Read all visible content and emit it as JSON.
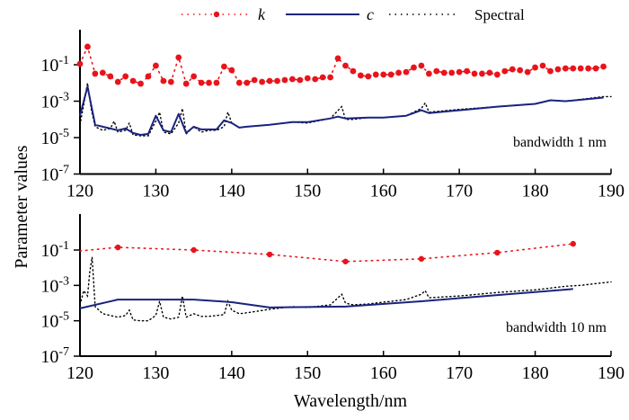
{
  "chart_data": [
    {
      "type": "line",
      "panel": "top",
      "annotation": "bandwidth 1 nm",
      "xlabel": "Wavelength/nm",
      "ylabel": "Parameter values",
      "xlim": [
        120,
        190
      ],
      "ylim_log10": [
        -7,
        1
      ],
      "yscale": "log",
      "xticks": [
        120,
        130,
        140,
        150,
        160,
        170,
        180,
        190
      ],
      "yticks": [
        {
          "base": "10",
          "exp": "-1",
          "log10": -1
        },
        {
          "base": "10",
          "exp": "-3",
          "log10": -3
        },
        {
          "base": "10",
          "exp": "-5",
          "log10": -5
        },
        {
          "base": "10",
          "exp": "-7",
          "log10": -7
        }
      ],
      "series": [
        {
          "name": "k",
          "style": "dotted-markers",
          "color": "#e8141b",
          "x": [
            120,
            121,
            122,
            123,
            124,
            125,
            126,
            127,
            128,
            129,
            130,
            131,
            132,
            133,
            134,
            135,
            136,
            137,
            138,
            139,
            140,
            141,
            142,
            143,
            144,
            145,
            146,
            147,
            148,
            149,
            150,
            151,
            152,
            153,
            154,
            155,
            156,
            157,
            158,
            159,
            160,
            161,
            162,
            163,
            164,
            165,
            166,
            167,
            168,
            169,
            170,
            171,
            172,
            173,
            174,
            175,
            176,
            177,
            178,
            179,
            180,
            181,
            182,
            183,
            184,
            185,
            186,
            187,
            188,
            189
          ],
          "log10_values": [
            -0.95,
            -0.01,
            -1.49,
            -1.44,
            -1.64,
            -1.94,
            -1.64,
            -1.89,
            -2.04,
            -1.64,
            -1.05,
            -1.89,
            -1.94,
            -0.6,
            -2.04,
            -1.64,
            -1.99,
            -1.99,
            -1.99,
            -1.1,
            -1.3,
            -1.99,
            -1.99,
            -1.84,
            -1.94,
            -1.89,
            -1.89,
            -1.84,
            -1.79,
            -1.84,
            -1.74,
            -1.79,
            -1.69,
            -1.69,
            -0.65,
            -1.05,
            -1.35,
            -1.59,
            -1.64,
            -1.54,
            -1.54,
            -1.54,
            -1.44,
            -1.4,
            -1.15,
            -1.05,
            -1.49,
            -1.35,
            -1.44,
            -1.44,
            -1.4,
            -1.35,
            -1.49,
            -1.49,
            -1.44,
            -1.54,
            -1.35,
            -1.25,
            -1.3,
            -1.4,
            -1.15,
            -1.05,
            -1.35,
            -1.25,
            -1.2,
            -1.2,
            -1.2,
            -1.2,
            -1.2,
            -1.1
          ]
        },
        {
          "name": "c",
          "style": "solid",
          "color": "#1a237e",
          "x": [
            120,
            121,
            122,
            123,
            124,
            125,
            126,
            127,
            128,
            129,
            130,
            131,
            132,
            133,
            134,
            135,
            136,
            137,
            138,
            139,
            140,
            141,
            142,
            145,
            148,
            150,
            153,
            154,
            155,
            158,
            160,
            163,
            165,
            166,
            170,
            175,
            180,
            182,
            184,
            189
          ],
          "log10_values": [
            -3.8,
            -2.2,
            -4.3,
            -4.4,
            -4.5,
            -4.6,
            -4.5,
            -4.75,
            -4.85,
            -4.8,
            -3.8,
            -4.6,
            -4.7,
            -3.7,
            -4.75,
            -4.4,
            -4.55,
            -4.55,
            -4.55,
            -4.05,
            -4.2,
            -4.45,
            -4.4,
            -4.3,
            -4.15,
            -4.15,
            -3.95,
            -3.85,
            -3.95,
            -3.9,
            -3.9,
            -3.8,
            -3.5,
            -3.65,
            -3.5,
            -3.3,
            -3.15,
            -2.95,
            -3.0,
            -2.8
          ]
        },
        {
          "name": "Spectral",
          "style": "dotted",
          "color": "#000000",
          "x": [
            120,
            120.5,
            121,
            121.5,
            122,
            123,
            124,
            124.5,
            125,
            126,
            126.5,
            127,
            128,
            129,
            130,
            130.5,
            131,
            132,
            133,
            133.5,
            134,
            135,
            136,
            137,
            138,
            139,
            139.5,
            140,
            141,
            142,
            145,
            148,
            150,
            153,
            154.5,
            155,
            156,
            158,
            160,
            163,
            165,
            165.5,
            166,
            170,
            175,
            180,
            182,
            184,
            189,
            190
          ],
          "log10_values": [
            -4.3,
            -3.2,
            -2.0,
            -3.5,
            -4.4,
            -4.6,
            -4.5,
            -4.1,
            -4.7,
            -4.6,
            -4.2,
            -4.85,
            -4.9,
            -4.9,
            -4.1,
            -3.6,
            -4.7,
            -4.8,
            -4.2,
            -3.4,
            -4.8,
            -4.4,
            -4.7,
            -4.6,
            -4.6,
            -4.4,
            -3.6,
            -4.2,
            -4.45,
            -4.4,
            -4.3,
            -4.15,
            -4.2,
            -3.95,
            -3.3,
            -4.0,
            -4.0,
            -3.9,
            -3.9,
            -3.8,
            -3.4,
            -3.1,
            -3.6,
            -3.45,
            -3.3,
            -3.15,
            -2.95,
            -3.0,
            -2.75,
            -2.75
          ]
        }
      ]
    },
    {
      "type": "line",
      "panel": "bottom",
      "annotation": "bandwidth 10 nm",
      "xlabel": "Wavelength/nm",
      "ylabel": "Parameter values",
      "xlim": [
        120,
        190
      ],
      "ylim_log10": [
        -7,
        1
      ],
      "yscale": "log",
      "xticks": [
        120,
        130,
        140,
        150,
        160,
        170,
        180,
        190
      ],
      "yticks": [
        {
          "base": "10",
          "exp": "-1",
          "log10": -1
        },
        {
          "base": "10",
          "exp": "-3",
          "log10": -3
        },
        {
          "base": "10",
          "exp": "-5",
          "log10": -5
        },
        {
          "base": "10",
          "exp": "-7",
          "log10": -7
        }
      ],
      "series": [
        {
          "name": "k",
          "style": "dotted-markers",
          "color": "#e8141b",
          "x": [
            120,
            125,
            135,
            145,
            155,
            165,
            175,
            185
          ],
          "marker_at": [
            125,
            135,
            145,
            155,
            165,
            175,
            185
          ],
          "log10_values": [
            -1.05,
            -0.85,
            -1.0,
            -1.25,
            -1.65,
            -1.5,
            -1.15,
            -0.65
          ]
        },
        {
          "name": "c",
          "style": "solid",
          "color": "#1a237e",
          "x": [
            120,
            125,
            135,
            140,
            145,
            155,
            165,
            175,
            185
          ],
          "log10_values": [
            -4.3,
            -3.8,
            -3.8,
            -3.95,
            -4.25,
            -4.2,
            -3.9,
            -3.55,
            -3.2
          ]
        },
        {
          "name": "Spectral",
          "style": "dotted",
          "color": "#000000",
          "x": [
            120,
            120.5,
            121,
            121.3,
            121.6,
            122,
            123,
            124,
            125,
            126,
            126.5,
            127,
            128,
            129,
            130,
            130.5,
            131,
            132,
            133,
            133.5,
            134,
            135,
            136,
            137,
            138,
            139,
            139.5,
            140,
            141,
            142,
            145,
            148,
            150,
            153,
            154.5,
            155,
            156,
            158,
            160,
            163,
            165,
            165.5,
            166,
            170,
            175,
            180,
            182,
            184,
            186,
            190
          ],
          "log10_values": [
            -4.1,
            -3.3,
            -3.6,
            -2.2,
            -1.4,
            -4.2,
            -4.6,
            -4.7,
            -4.8,
            -4.7,
            -4.4,
            -4.95,
            -5.0,
            -5.0,
            -4.7,
            -3.9,
            -4.8,
            -4.9,
            -4.8,
            -3.6,
            -4.8,
            -4.6,
            -4.75,
            -4.75,
            -4.7,
            -4.65,
            -3.9,
            -4.4,
            -4.6,
            -4.55,
            -4.35,
            -4.2,
            -4.25,
            -4.1,
            -3.5,
            -4.0,
            -4.1,
            -4.05,
            -3.95,
            -3.8,
            -3.5,
            -3.3,
            -3.7,
            -3.6,
            -3.4,
            -3.25,
            -3.15,
            -3.05,
            -3.0,
            -2.8
          ]
        }
      ]
    }
  ],
  "legend": {
    "placement": "top-center",
    "entries": [
      {
        "label": "k",
        "style": "dotted-markers",
        "color": "#e8141b"
      },
      {
        "label": "c",
        "style": "solid",
        "color": "#1a237e"
      },
      {
        "label": "Spectral",
        "style": "dotted",
        "color": "#000000"
      }
    ]
  },
  "shared_ylabel": "Parameter values",
  "shared_xlabel": "Wavelength/nm"
}
